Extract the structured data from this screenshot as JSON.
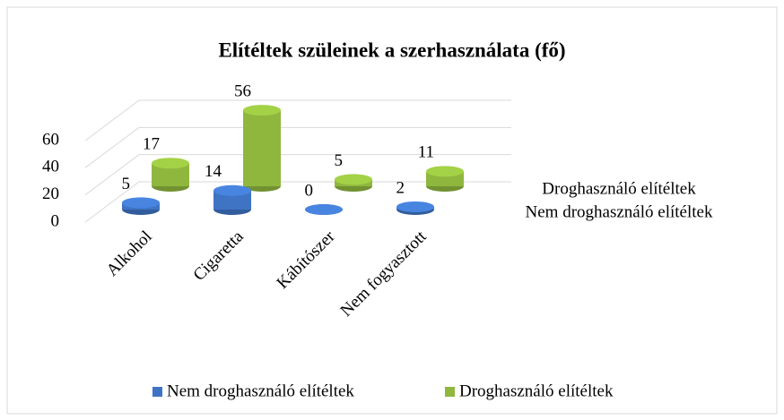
{
  "chart_data": {
    "type": "bar3d",
    "title": "Elítéltek szüleinek a szerhasználata (fő)",
    "categories": [
      "Alkohol",
      "Cigaretta",
      "Kábítószer",
      "Nem fogyasztott"
    ],
    "series": [
      {
        "name": "Nem droghasználó elítéltek",
        "color": "#3f74c4",
        "values": [
          5,
          14,
          0,
          2
        ]
      },
      {
        "name": "Droghasználó elítéltek",
        "color": "#8fb73e",
        "values": [
          17,
          56,
          5,
          11
        ]
      }
    ],
    "ylim": [
      0,
      60
    ],
    "yticks": [
      0,
      20,
      40,
      60
    ],
    "grid": true,
    "legend": "bottom"
  }
}
